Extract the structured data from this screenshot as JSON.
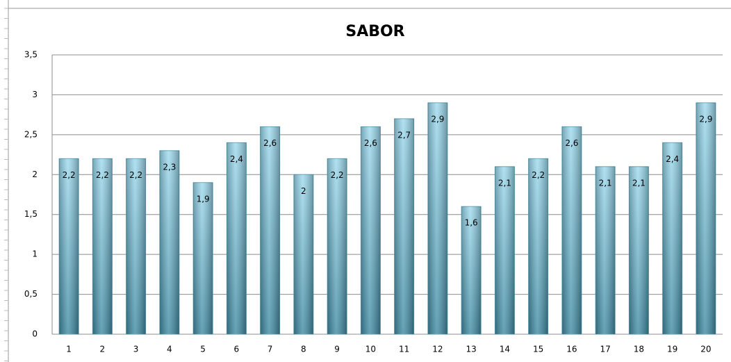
{
  "chart_data": {
    "type": "bar",
    "title": "SABOR",
    "categories": [
      "1",
      "2",
      "3",
      "4",
      "5",
      "6",
      "7",
      "8",
      "9",
      "10",
      "11",
      "12",
      "13",
      "14",
      "15",
      "16",
      "17",
      "18",
      "19",
      "20"
    ],
    "values": [
      2.2,
      2.2,
      2.2,
      2.3,
      1.9,
      2.4,
      2.6,
      2,
      2.2,
      2.6,
      2.7,
      2.9,
      1.6,
      2.1,
      2.2,
      2.6,
      2.1,
      2.1,
      2.4,
      2.9
    ],
    "value_labels": [
      "2,2",
      "2,2",
      "2,2",
      "2,3",
      "1,9",
      "2,4",
      "2,6",
      "2",
      "2,2",
      "2,6",
      "2,7",
      "2,9",
      "1,6",
      "2,1",
      "2,2",
      "2,6",
      "2,1",
      "2,1",
      "2,4",
      "2,9"
    ],
    "color": "#7cc6df",
    "ylim": [
      0,
      3.5
    ],
    "yticks": [
      0,
      {
        "value": 0.5,
        "label": "0,5"
      },
      1,
      {
        "value": 1.5,
        "label": "1,5"
      },
      2,
      {
        "value": 2.5,
        "label": "2,5"
      },
      3,
      {
        "value": 3.5,
        "label": "3,5"
      }
    ],
    "grid": true
  }
}
